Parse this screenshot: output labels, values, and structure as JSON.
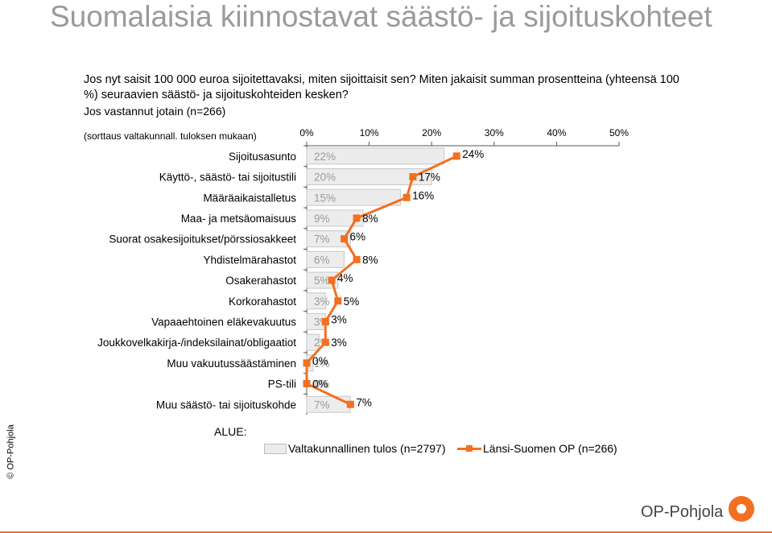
{
  "header": {
    "title": "Suomalaisia kiinnostavat säästö- ja sijoituskohteet",
    "question": "Jos nyt saisit 100 000 euroa sijoitettavaksi, miten sijoittaisit sen? Miten jakaisit summan prosentteina (yhteensä 100 %) seuraavien säästö- ja sijoituskohteiden kesken?",
    "subtitle": "Jos vastannut jotain (n=266)",
    "sort_note": "(sorttaus valtakunnall. tuloksen mukaan)"
  },
  "chart_data": {
    "type": "bar",
    "categories": [
      "Sijoitusasunto",
      "Käyttö-, säästö- tai sijoitustili",
      "Määräaikaistalletus",
      "Maa- ja metsäomaisuus",
      "Suorat osakesijoitukset/pörssiosakkeet",
      "Yhdistelmärahastot",
      "Osakerahastot",
      "Korkorahastot",
      "Vapaaehtoinen eläkevakuutus",
      "Joukkovelkakirja-/indeksilainat/obligaatiot",
      "Muu vakuutussäästäminen",
      "PS-tili",
      "Muu säästö- tai sijoituskohde"
    ],
    "series": [
      {
        "name": "Valtakunnallinen tulos (n=2797)",
        "kind": "bar",
        "color": "#ececec",
        "values": [
          22,
          20,
          15,
          9,
          7,
          6,
          5,
          3,
          3,
          2,
          1,
          0,
          7
        ],
        "labels": [
          "22%",
          "20%",
          "15%",
          "9%",
          "7%",
          "6%",
          "5%",
          "3%",
          "3%",
          "2%",
          "1%",
          "0%",
          "7%"
        ]
      },
      {
        "name": "Länsi-Suomen OP (n=266)",
        "kind": "line",
        "color": "#f36f21",
        "values": [
          24,
          17,
          16,
          8,
          6,
          8,
          4,
          5,
          3,
          3,
          0,
          0,
          7
        ],
        "labels": [
          "24%",
          "17%",
          "16%",
          "8%",
          "6%",
          "8%",
          "4%",
          "5%",
          "3%",
          "3%",
          "0%",
          "0%",
          "7%"
        ]
      }
    ],
    "xlim": [
      0,
      50
    ],
    "ticks": [
      "0%",
      "10%",
      "20%",
      "30%",
      "40%",
      "50%"
    ],
    "legend_position": "bottom"
  },
  "legend": {
    "area_label": "ALUE:",
    "national": "Valtakunnallinen tulos (n=2797)",
    "regional": "Länsi-Suomen OP (n=266)"
  },
  "footer": {
    "copyright": "© OP-Pohjola",
    "brand": "OP-Pohjola"
  }
}
